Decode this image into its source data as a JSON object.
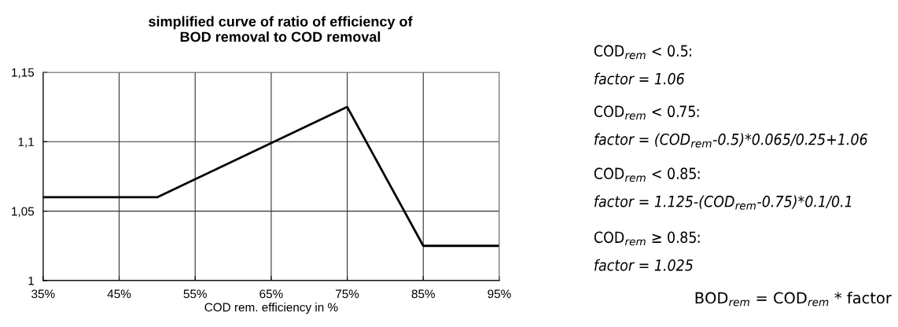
{
  "chart_data": {
    "type": "line",
    "title": "simplified curve of ratio of efficiency of\nBOD removal to COD removal",
    "xlabel": "COD rem. efficiency in %",
    "x": [
      35,
      50,
      75,
      85,
      95
    ],
    "series": [
      {
        "color": "#000000",
        "values": [
          1.06,
          1.06,
          1.125,
          1.025,
          1.025
        ]
      }
    ],
    "xlim": [
      35,
      95
    ],
    "xticks": [
      {
        "value": 35,
        "label": "35%"
      },
      {
        "value": 45,
        "label": "45%"
      },
      {
        "value": 55,
        "label": "55%"
      },
      {
        "value": 65,
        "label": "65%"
      },
      {
        "value": 75,
        "label": "75%"
      },
      {
        "value": 85,
        "label": "85%"
      },
      {
        "value": 95,
        "label": "95%"
      }
    ],
    "ylim": [
      1,
      1.15
    ],
    "yticks": [
      {
        "value": 1,
        "label": "1"
      },
      {
        "value": 1.05,
        "label": "1,05"
      },
      {
        "value": 1.1,
        "label": "1,1"
      },
      {
        "value": 1.15,
        "label": "1,15"
      }
    ],
    "grid": true,
    "marker": "none",
    "line_style": "solid",
    "annotations": [
      "COD$_{rem}$ < 0.5:",
      "factor = 1.06",
      "COD$_{rem}$ < 0.75:",
      "factor = (COD$_{rem}$-0.5)*0.065/0.25+1.06",
      "COD$_{rem}$ < 0.85:",
      "factor = 1.125-(COD$_{rem}$-0.75)*0.1/0.1",
      "COD$_{rem}$ ≥ 0.85:",
      "factor = 1.025",
      "BOD$_{rem}$ = COD$_{rem}$ * factor"
    ]
  }
}
